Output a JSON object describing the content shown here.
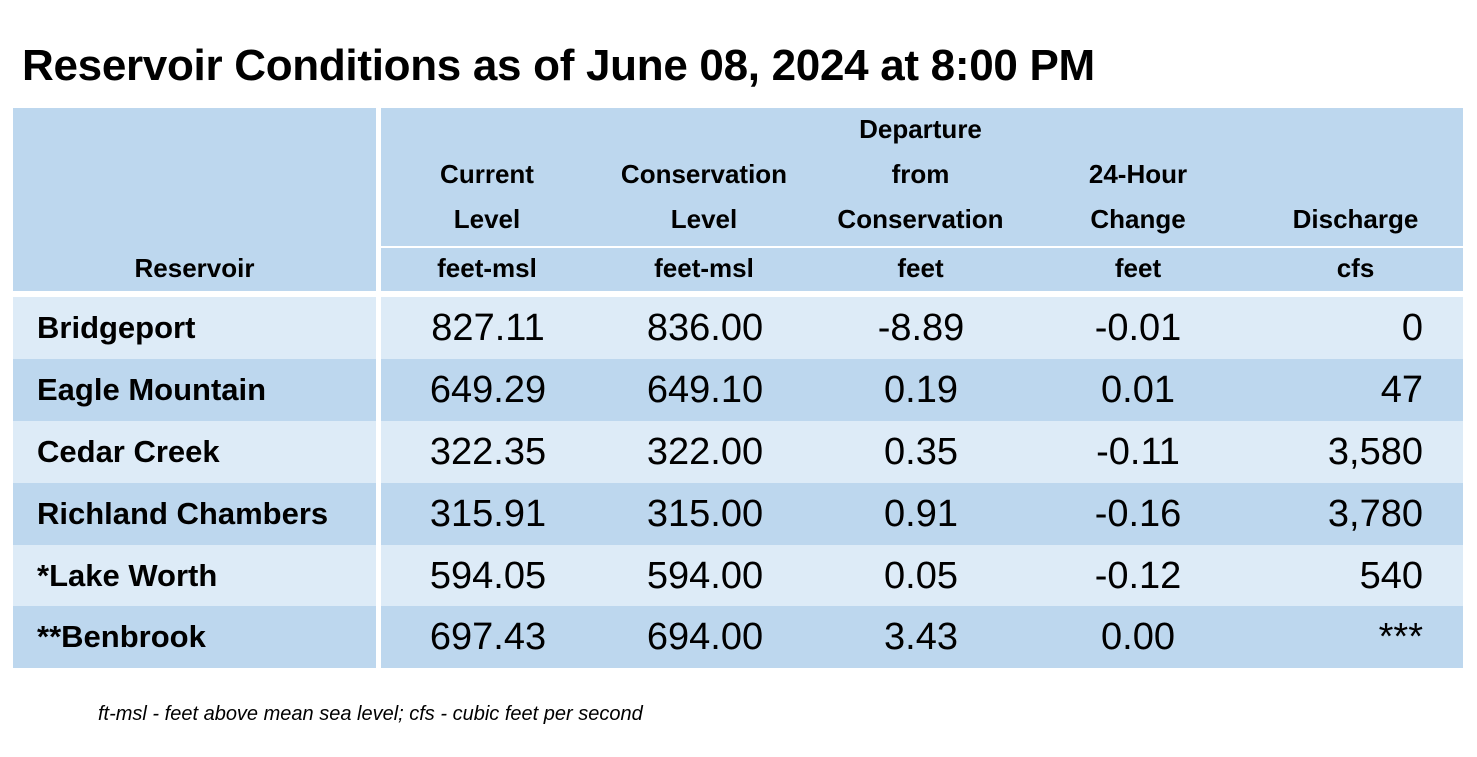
{
  "title": "Reservoir Conditions as of June 08, 2024 at 8:00 PM",
  "columns": [
    {
      "key": "reservoir",
      "label_lines": [],
      "label_bottom": "Reservoir",
      "unit": ""
    },
    {
      "key": "current_level",
      "label_lines": [
        "Current",
        "Level"
      ],
      "unit": "feet-msl"
    },
    {
      "key": "conservation_level",
      "label_lines": [
        "Conservation",
        "Level"
      ],
      "unit": "feet-msl"
    },
    {
      "key": "departure",
      "label_lines": [
        "Departure",
        "from",
        "Conservation"
      ],
      "unit": "feet"
    },
    {
      "key": "change_24h",
      "label_lines": [
        "24-Hour",
        "Change"
      ],
      "unit": "feet"
    },
    {
      "key": "discharge",
      "label_lines": [
        "Discharge"
      ],
      "unit": "cfs"
    }
  ],
  "rows": [
    {
      "reservoir": "Bridgeport",
      "current_level": "827.11",
      "conservation_level": "836.00",
      "departure": "-8.89",
      "change_24h": "-0.01",
      "discharge": "0"
    },
    {
      "reservoir": "Eagle Mountain",
      "current_level": "649.29",
      "conservation_level": "649.10",
      "departure": "0.19",
      "change_24h": "0.01",
      "discharge": "47"
    },
    {
      "reservoir": "Cedar Creek",
      "current_level": "322.35",
      "conservation_level": "322.00",
      "departure": "0.35",
      "change_24h": "-0.11",
      "discharge": "3,580"
    },
    {
      "reservoir": "Richland Chambers",
      "current_level": "315.91",
      "conservation_level": "315.00",
      "departure": "0.91",
      "change_24h": "-0.16",
      "discharge": "3,780"
    },
    {
      "reservoir": "*Lake Worth",
      "current_level": "594.05",
      "conservation_level": "594.00",
      "departure": "0.05",
      "change_24h": "-0.12",
      "discharge": "540"
    },
    {
      "reservoir": "**Benbrook",
      "current_level": "697.43",
      "conservation_level": "694.00",
      "departure": "3.43",
      "change_24h": "0.00",
      "discharge": "***"
    }
  ],
  "footnote": "ft-msl - feet above mean sea level; cfs - cubic feet per second",
  "colors": {
    "header": "#bdd7ee",
    "row_light": "#ddebf7",
    "row_dark": "#bdd7ee"
  }
}
